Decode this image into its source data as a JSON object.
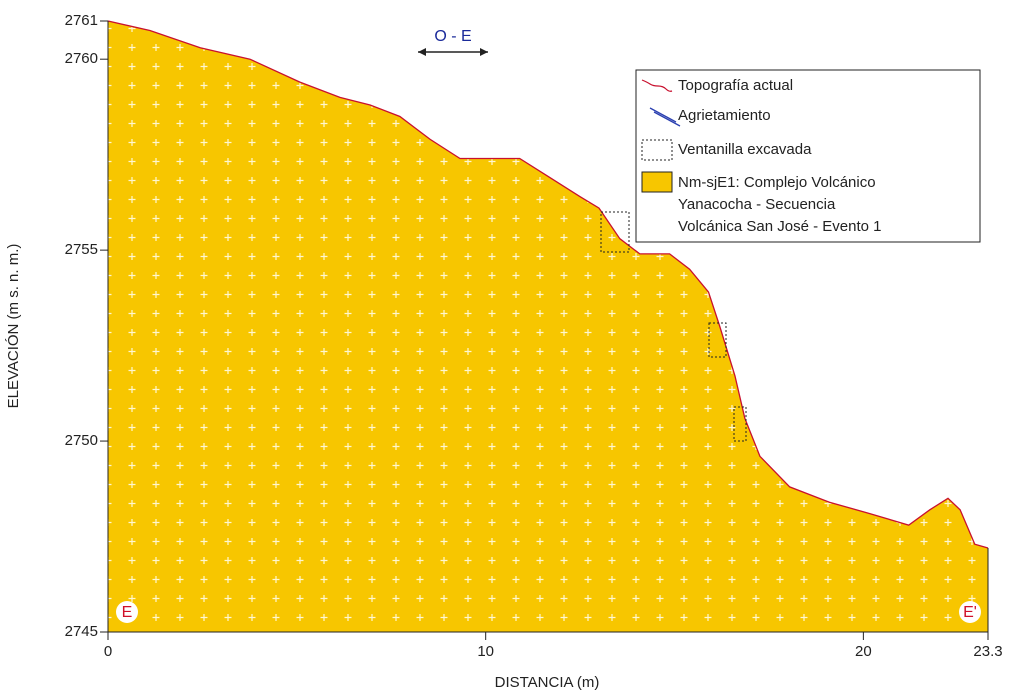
{
  "chart_data": {
    "type": "area",
    "x": [
      0,
      1.11,
      2.44,
      3.76,
      5.08,
      6.14,
      6.94,
      7.73,
      8.53,
      9.32,
      10.11,
      10.9,
      11.7,
      12.5,
      13.0,
      13.55,
      14.08,
      14.87,
      15.4,
      15.9,
      16.2,
      16.6,
      16.86,
      17.26,
      18.05,
      19.1,
      20.17,
      21.2,
      21.76,
      22.24,
      22.56,
      22.95,
      23.3
    ],
    "series": [
      {
        "name": "Topografía actual",
        "color": "#c8102e",
        "fill": "#f7c600",
        "values": [
          2761.0,
          2760.75,
          2760.3,
          2760.0,
          2759.4,
          2759.0,
          2758.8,
          2758.5,
          2757.9,
          2757.4,
          2757.4,
          2757.4,
          2756.9,
          2756.4,
          2756.1,
          2755.3,
          2754.9,
          2754.9,
          2754.5,
          2753.9,
          2753.0,
          2751.7,
          2750.6,
          2749.6,
          2748.8,
          2748.4,
          2748.1,
          2747.8,
          2748.2,
          2748.5,
          2748.2,
          2747.3,
          2747.2
        ]
      }
    ],
    "xlim": [
      0,
      23.3
    ],
    "xticks": [
      0,
      10,
      20,
      23.3
    ],
    "ylim": [
      2745,
      2761
    ],
    "yticks": [
      2745,
      2750,
      2755,
      2760,
      2761
    ],
    "xlabel": "DISTANCIA (m)",
    "ylabel": "ELEVACIÓN (m s. n. m.)",
    "annotation": "O - E",
    "start_label": "E",
    "end_label": "E'",
    "legend_extra": [
      "Agrietamiento",
      "Ventanilla excavada",
      [
        "Nm-sjE1: Complejo Volcánico",
        "Yanacocha - Secuencia",
        "Volcánica San José - Evento 1"
      ]
    ]
  }
}
